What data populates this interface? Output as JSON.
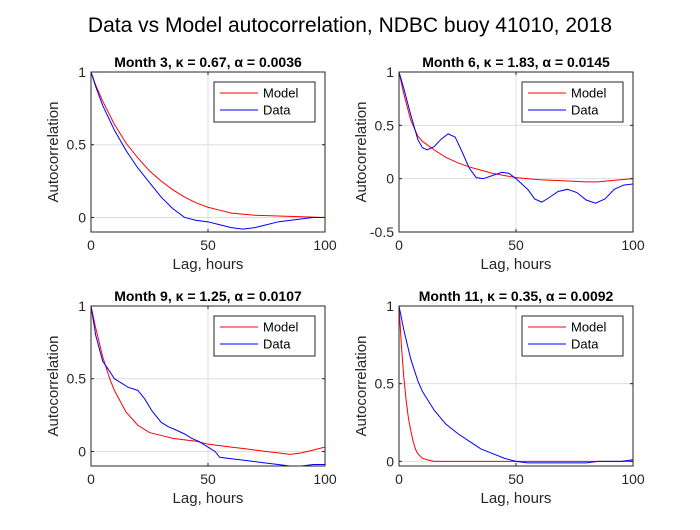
{
  "figure": {
    "title": "Data vs Model autocorrelation, NDBC buoy 41010, 2018"
  },
  "chart_data": [
    {
      "type": "line",
      "title": "Month 3, κ = 0.67, α = 0.0036",
      "xlabel": "Lag, hours",
      "ylabel": "Autocorrelation",
      "xlim": [
        0,
        100
      ],
      "ylim": [
        -0.1,
        1
      ],
      "xticks": [
        0,
        50,
        100
      ],
      "yticks": [
        0,
        0.5,
        1
      ],
      "grid": true,
      "legend": "top-right",
      "series": [
        {
          "name": "Model",
          "color": "#ff0000",
          "x": [
            0,
            2,
            5,
            10,
            15,
            20,
            25,
            30,
            35,
            40,
            45,
            50,
            55,
            60,
            70,
            80,
            90,
            100
          ],
          "y": [
            1,
            0.91,
            0.8,
            0.64,
            0.51,
            0.41,
            0.32,
            0.25,
            0.19,
            0.14,
            0.1,
            0.07,
            0.05,
            0.03,
            0.015,
            0.01,
            0.005,
            0.0
          ]
        },
        {
          "name": "Data",
          "color": "#0000ff",
          "x": [
            0,
            2,
            5,
            10,
            15,
            20,
            25,
            30,
            35,
            40,
            45,
            50,
            55,
            60,
            65,
            70,
            75,
            80,
            85,
            90,
            95,
            100
          ],
          "y": [
            1,
            0.9,
            0.77,
            0.6,
            0.46,
            0.34,
            0.24,
            0.14,
            0.06,
            0.0,
            -0.02,
            -0.03,
            -0.05,
            -0.07,
            -0.08,
            -0.07,
            -0.05,
            -0.03,
            -0.02,
            -0.01,
            0.0,
            0.0
          ]
        }
      ]
    },
    {
      "type": "line",
      "title": "Month 6, κ = 1.83, α = 0.0145",
      "xlabel": "Lag, hours",
      "ylabel": "Autocorrelation",
      "xlim": [
        0,
        100
      ],
      "ylim": [
        -0.5,
        1
      ],
      "xticks": [
        0,
        50,
        100
      ],
      "yticks": [
        -0.5,
        0,
        0.5,
        1
      ],
      "grid": true,
      "legend": "top-right",
      "series": [
        {
          "name": "Model",
          "color": "#ff0000",
          "x": [
            0,
            2,
            5,
            8,
            10,
            15,
            20,
            25,
            30,
            35,
            40,
            50,
            60,
            70,
            80,
            85,
            90,
            100
          ],
          "y": [
            1,
            0.8,
            0.55,
            0.4,
            0.35,
            0.27,
            0.2,
            0.15,
            0.11,
            0.08,
            0.05,
            0.01,
            -0.01,
            -0.02,
            -0.03,
            -0.03,
            -0.02,
            0.0
          ]
        },
        {
          "name": "Data",
          "color": "#0000ff",
          "x": [
            0,
            2,
            5,
            8,
            10,
            12,
            15,
            18,
            21,
            24,
            27,
            30,
            33,
            36,
            40,
            44,
            47,
            50,
            55,
            58,
            61,
            64,
            68,
            72,
            76,
            80,
            84,
            88,
            92,
            96,
            100
          ],
          "y": [
            1,
            0.85,
            0.6,
            0.37,
            0.29,
            0.27,
            0.3,
            0.37,
            0.42,
            0.39,
            0.25,
            0.1,
            0.01,
            0.0,
            0.03,
            0.06,
            0.05,
            0.0,
            -0.1,
            -0.19,
            -0.22,
            -0.18,
            -0.12,
            -0.1,
            -0.13,
            -0.2,
            -0.23,
            -0.19,
            -0.1,
            -0.06,
            -0.05
          ]
        }
      ]
    },
    {
      "type": "line",
      "title": "Month 9, κ = 1.25, α = 0.0107",
      "xlabel": "Lag, hours",
      "ylabel": "Autocorrelation",
      "xlim": [
        0,
        100
      ],
      "ylim": [
        -0.1,
        1
      ],
      "xticks": [
        0,
        50,
        100
      ],
      "yticks": [
        0,
        0.5,
        1
      ],
      "grid": true,
      "legend": "top-right",
      "series": [
        {
          "name": "Model",
          "color": "#ff0000",
          "x": [
            0,
            2,
            5,
            8,
            10,
            15,
            20,
            25,
            30,
            35,
            40,
            45,
            50,
            55,
            60,
            65,
            70,
            75,
            80,
            85,
            90,
            95,
            100
          ],
          "y": [
            1,
            0.85,
            0.65,
            0.5,
            0.42,
            0.27,
            0.18,
            0.13,
            0.11,
            0.09,
            0.08,
            0.07,
            0.05,
            0.04,
            0.03,
            0.02,
            0.01,
            0.0,
            -0.01,
            -0.02,
            -0.01,
            0.01,
            0.03
          ]
        },
        {
          "name": "Data",
          "color": "#0000ff",
          "x": [
            0,
            2,
            5,
            8,
            10,
            13,
            16,
            20,
            23,
            26,
            30,
            33,
            36,
            40,
            43,
            46,
            50,
            53,
            55,
            60,
            65,
            70,
            75,
            80,
            85,
            90,
            95,
            100
          ],
          "y": [
            1,
            0.8,
            0.62,
            0.55,
            0.5,
            0.47,
            0.44,
            0.42,
            0.36,
            0.28,
            0.2,
            0.17,
            0.15,
            0.12,
            0.09,
            0.07,
            0.03,
            0.0,
            -0.04,
            -0.05,
            -0.06,
            -0.07,
            -0.08,
            -0.09,
            -0.1,
            -0.1,
            -0.09,
            -0.09
          ]
        }
      ]
    },
    {
      "type": "line",
      "title": "Month 11, κ = 0.35, α = 0.0092",
      "xlabel": "Lag, hours",
      "ylabel": "Autocorrelation",
      "xlim": [
        0,
        100
      ],
      "ylim": [
        -0.03,
        1
      ],
      "xticks": [
        0,
        50,
        100
      ],
      "yticks": [
        0,
        0.5,
        1
      ],
      "grid": true,
      "legend": "top-right",
      "series": [
        {
          "name": "Model",
          "color": "#ff0000",
          "x": [
            0,
            1,
            2,
            3,
            4,
            5,
            6,
            7,
            8,
            10,
            12,
            15,
            20,
            30,
            50,
            100
          ],
          "y": [
            1,
            0.75,
            0.55,
            0.4,
            0.28,
            0.2,
            0.13,
            0.08,
            0.05,
            0.02,
            0.01,
            0.0,
            0.0,
            0.0,
            0.0,
            0.0
          ]
        },
        {
          "name": "Data",
          "color": "#0000ff",
          "x": [
            0,
            2,
            5,
            8,
            10,
            15,
            20,
            25,
            30,
            35,
            40,
            45,
            50,
            55,
            60,
            65,
            70,
            75,
            80,
            85,
            90,
            95,
            100
          ],
          "y": [
            1,
            0.85,
            0.66,
            0.52,
            0.45,
            0.33,
            0.24,
            0.18,
            0.13,
            0.08,
            0.05,
            0.02,
            0.0,
            -0.01,
            -0.01,
            -0.01,
            -0.01,
            -0.01,
            -0.01,
            0.0,
            0.0,
            0.0,
            0.01
          ]
        }
      ]
    }
  ]
}
